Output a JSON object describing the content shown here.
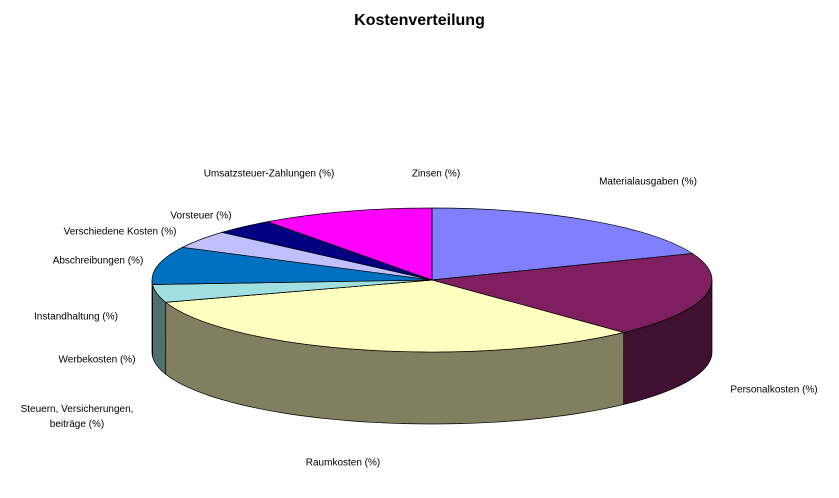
{
  "chart_data": {
    "type": "pie3d",
    "title": "Kostenverteilung",
    "categories": [
      "Materialausgaben (%)",
      "Personalkosten (%)",
      "Raumkosten (%)",
      "Steuern, Versicherungen, beiträge (%)",
      "Werbekosten (%)",
      "Instandhaltung (%)",
      "Abschreibungen (%)",
      "Verschiedene Kosten (%)",
      "Vorsteuer (%)",
      "Umsatzsteuer-Zahlungen (%)",
      "Zinsen (%)"
    ],
    "values": [
      19,
      19,
      32,
      0,
      0,
      4,
      8.5,
      4,
      3.5,
      10,
      0
    ],
    "colors": [
      "#8080ff",
      "#7f1f5f",
      "#ffffc0",
      "#808080",
      "#600060",
      "#a0e0e0",
      "#0070c0",
      "#c0c0ff",
      "#000080",
      "#ff00ff",
      "#ffff00"
    ]
  }
}
